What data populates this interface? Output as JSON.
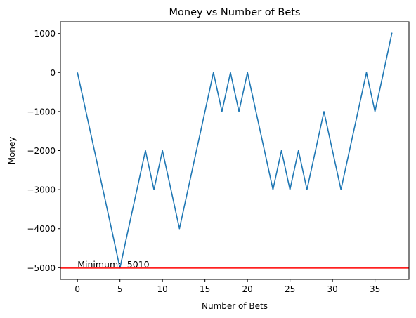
{
  "chart_data": {
    "type": "line",
    "title": "Money vs Number of Bets",
    "xlabel": "Number of Bets",
    "ylabel": "Money",
    "xlim": [
      -2,
      39
    ],
    "ylim": [
      -5300,
      1300
    ],
    "xticks": [
      0,
      5,
      10,
      15,
      20,
      25,
      30,
      35
    ],
    "yticks": [
      -5000,
      -4000,
      -3000,
      -2000,
      -1000,
      0,
      1000
    ],
    "tick_labels": {
      "x": [
        "0",
        "5",
        "10",
        "15",
        "20",
        "25",
        "30",
        "35"
      ],
      "y": [
        "−5000",
        "−4000",
        "−3000",
        "−2000",
        "−1000",
        "0",
        "1000"
      ]
    },
    "grid": false,
    "series": [
      {
        "color": "#1f77b4",
        "x": [
          0,
          1,
          2,
          3,
          4,
          5,
          6,
          7,
          8,
          9,
          10,
          11,
          12,
          13,
          14,
          15,
          16,
          17,
          18,
          19,
          20,
          21,
          22,
          23,
          24,
          25,
          26,
          27,
          28,
          29,
          30,
          31,
          32,
          33,
          34,
          35,
          36,
          37
        ],
        "values": [
          0,
          -1000,
          -2000,
          -3000,
          -4000,
          -5010,
          -4000,
          -3000,
          -2000,
          -3000,
          -2000,
          -3000,
          -4000,
          -3000,
          -2000,
          -1000,
          0,
          -1000,
          0,
          -1000,
          0,
          -1000,
          -2000,
          -3000,
          -2000,
          -3000,
          -2000,
          -3000,
          -2000,
          -1000,
          -2000,
          -3000,
          -2000,
          -1000,
          0,
          -1000,
          0,
          1020
        ]
      }
    ],
    "reference_line": {
      "orientation": "horizontal",
      "y": -5010,
      "color": "#ff0000"
    },
    "annotation": {
      "text": "Minimum: -5010",
      "x": 0,
      "y": -5010
    }
  }
}
